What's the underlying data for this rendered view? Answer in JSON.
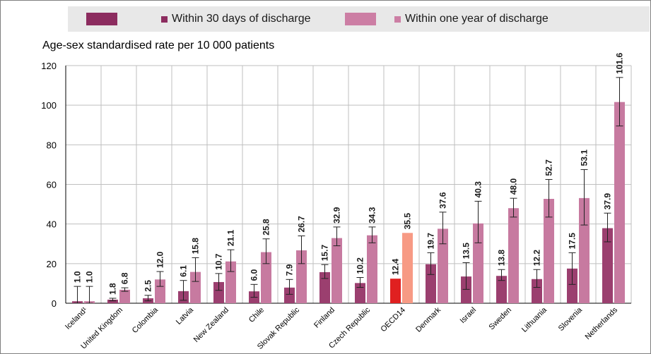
{
  "legend": [
    {
      "name": "Within 30 days of discharge",
      "color": "#8c2c5f"
    },
    {
      "name": "Within one year of discharge",
      "color": "#cc7ea4"
    }
  ],
  "colors": {
    "within_30": "#9b3f6f",
    "within_year": "#c77aa0",
    "oecd_30": "#e02020",
    "oecd_year": "#f79a84",
    "grid": "#bfbfbf"
  },
  "chart_data": {
    "type": "bar",
    "ylabel": "Age-sex standardised rate per 10 000 patients",
    "ylim": [
      0,
      120
    ],
    "yticks": [
      "0",
      "20",
      "40",
      "60",
      "80",
      "100",
      "120"
    ],
    "highlight": "OECD14",
    "categories": [
      "Iceland¹",
      "United Kingdom",
      "Colombia",
      "Latvia",
      "New Zealand",
      "Chile",
      "Slovak Republic",
      "Finland",
      "Czech Republic",
      "OECD14",
      "Denmark",
      "Israel",
      "Sweden",
      "Lithuania",
      "Slovenia",
      "Netherlands"
    ],
    "series": [
      {
        "name": "Within 30 days of discharge",
        "values": [
          1.0,
          1.8,
          2.5,
          6.1,
          10.7,
          6.0,
          7.9,
          15.7,
          10.2,
          12.4,
          19.7,
          13.5,
          13.8,
          12.2,
          17.5,
          37.9
        ],
        "labels": [
          "1.0",
          "1.8",
          "2.5",
          "6.1",
          "10.7",
          "6.0",
          "7.9",
          "15.7",
          "10.2",
          "12.4",
          "19.7",
          "13.5",
          "13.8",
          "12.2",
          "17.5",
          "37.9"
        ],
        "err_low": [
          0,
          1.2,
          1.2,
          1.5,
          6.5,
          3.0,
          4.5,
          12.5,
          8.0,
          null,
          14.5,
          7.0,
          11.5,
          8.0,
          9.5,
          31.0
        ],
        "err_high": [
          8.5,
          2.5,
          4.0,
          11.5,
          15.0,
          9.5,
          12.0,
          19.5,
          13.0,
          null,
          25.5,
          20.5,
          17.0,
          17.0,
          25.5,
          45.5
        ]
      },
      {
        "name": "Within one year of discharge",
        "values": [
          1.0,
          6.8,
          12.0,
          15.8,
          21.1,
          25.8,
          26.7,
          32.9,
          34.3,
          35.5,
          37.6,
          40.3,
          48.0,
          52.7,
          53.1,
          101.6
        ],
        "labels": [
          "1.0",
          "6.8",
          "12.0",
          "15.8",
          "21.1",
          "25.8",
          "26.7",
          "32.9",
          "34.3",
          "35.5",
          "37.6",
          "40.3",
          "48.0",
          "52.7",
          "53.1",
          "101.6"
        ],
        "err_low": [
          0,
          6.0,
          8.5,
          11.0,
          16.0,
          20.0,
          20.0,
          29.0,
          30.5,
          null,
          30.0,
          30.5,
          43.5,
          43.5,
          39.5,
          89.5
        ],
        "err_high": [
          8.5,
          7.8,
          16.0,
          23.0,
          27.0,
          32.5,
          34.0,
          38.5,
          38.5,
          null,
          46.0,
          51.5,
          53.0,
          62.5,
          67.5,
          114.0
        ]
      }
    ]
  }
}
